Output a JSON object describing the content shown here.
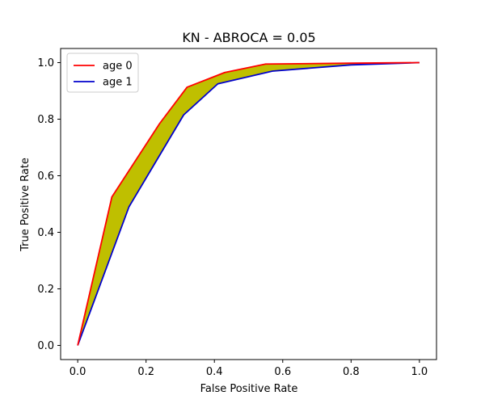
{
  "chart_data": {
    "type": "line",
    "title": "KN - ABROCA = 0.05",
    "xlabel": "False Positive Rate",
    "ylabel": "True Positive Rate",
    "xlim": [
      -0.05,
      1.05
    ],
    "ylim": [
      -0.05,
      1.05
    ],
    "xticks": [
      0.0,
      0.2,
      0.4,
      0.6,
      0.8,
      1.0
    ],
    "yticks": [
      0.0,
      0.2,
      0.4,
      0.6,
      0.8,
      1.0
    ],
    "xtick_labels": [
      "0.0",
      "0.2",
      "0.4",
      "0.6",
      "0.8",
      "1.0"
    ],
    "ytick_labels": [
      "0.0",
      "0.2",
      "0.4",
      "0.6",
      "0.8",
      "1.0"
    ],
    "grid": false,
    "legend_position": "top-left",
    "fill_between_color": "#bfbf00",
    "series": [
      {
        "name": "age 0",
        "color": "#ff0000",
        "x": [
          0.0,
          0.1,
          0.24,
          0.32,
          0.43,
          0.55,
          0.8,
          1.0
        ],
        "y": [
          0.0,
          0.525,
          0.785,
          0.913,
          0.965,
          0.995,
          0.998,
          1.0
        ]
      },
      {
        "name": "age 1",
        "color": "#0000cc",
        "x": [
          0.0,
          0.15,
          0.31,
          0.41,
          0.57,
          0.8,
          1.0
        ],
        "y": [
          0.0,
          0.49,
          0.815,
          0.925,
          0.97,
          0.992,
          1.0
        ]
      }
    ]
  }
}
